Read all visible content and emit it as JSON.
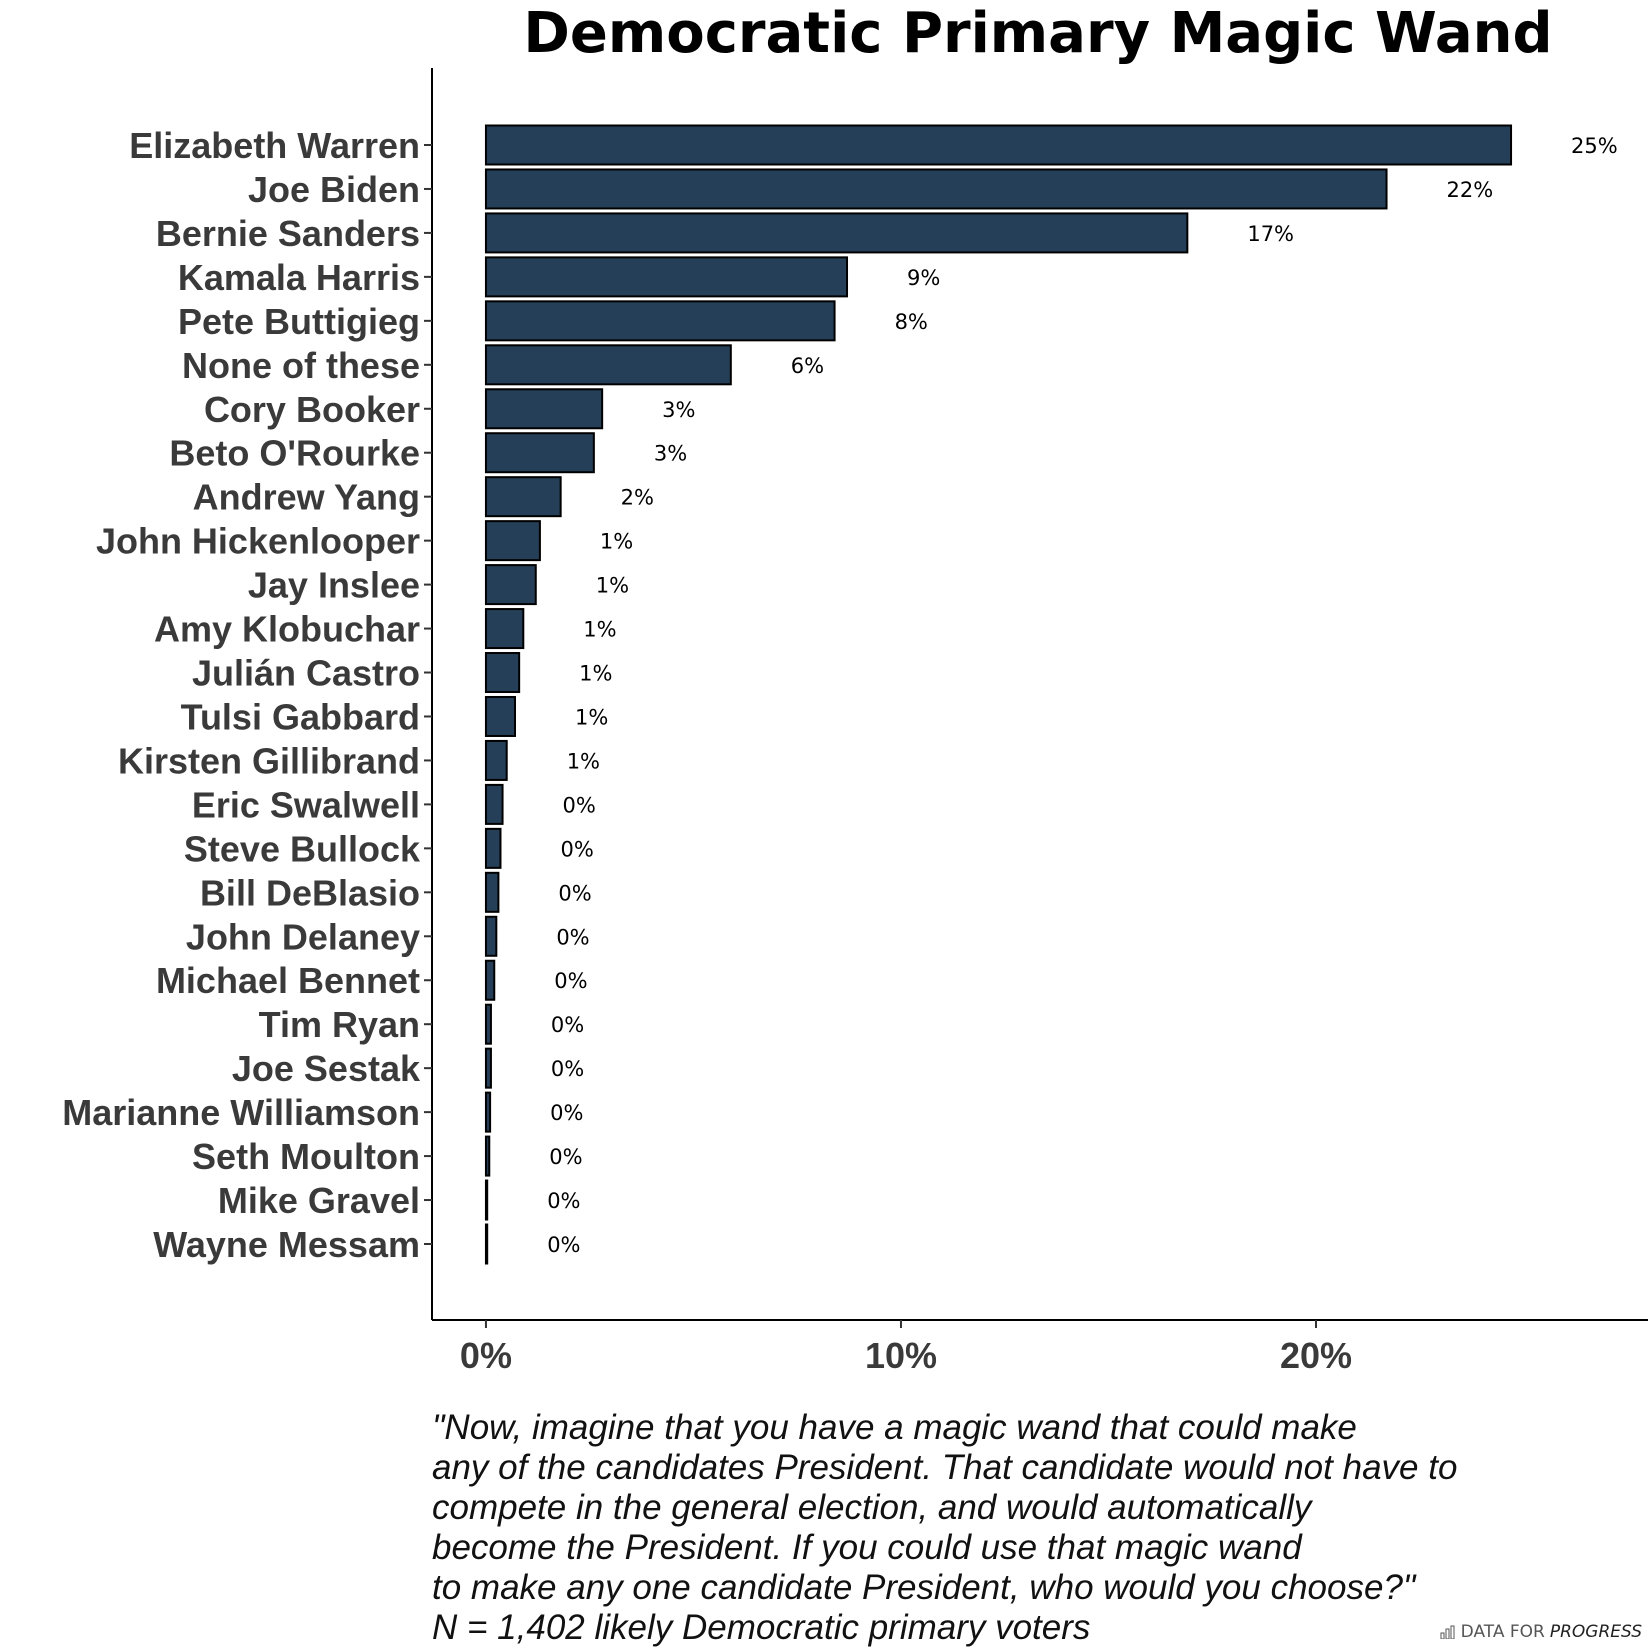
{
  "chart_data": {
    "type": "bar",
    "orientation": "horizontal",
    "title": "Democratic Primary Magic Wand",
    "xlabel": "",
    "ylabel": "",
    "xlim": [
      -1.3,
      28
    ],
    "x_ticks": [
      0,
      10,
      20
    ],
    "x_tick_labels": [
      "0%",
      "10%",
      "20%"
    ],
    "grid": false,
    "categories": [
      "Elizabeth Warren",
      "Joe Biden",
      "Bernie Sanders",
      "Kamala Harris",
      "Pete Buttigieg",
      "None of these",
      "Cory Booker",
      "Beto O'Rourke",
      "Andrew Yang",
      "John Hickenlooper",
      "Jay Inslee",
      "Amy Klobuchar",
      "Julián Castro",
      "Tulsi Gabbard",
      "Kirsten Gillibrand",
      "Eric Swalwell",
      "Steve Bullock",
      "Bill DeBlasio",
      "John Delaney",
      "Michael Bennet",
      "Tim Ryan",
      "Joe Sestak",
      "Marianne Williamson",
      "Seth Moulton",
      "Mike Gravel",
      "Wayne Messam"
    ],
    "values": [
      24.7,
      21.7,
      16.9,
      8.7,
      8.4,
      5.9,
      2.8,
      2.6,
      1.8,
      1.3,
      1.2,
      0.9,
      0.8,
      0.7,
      0.5,
      0.4,
      0.35,
      0.3,
      0.25,
      0.2,
      0.12,
      0.12,
      0.1,
      0.08,
      0.03,
      0.03
    ],
    "data_labels": [
      "25%",
      "22%",
      "17%",
      "9%",
      "8%",
      "6%",
      "3%",
      "3%",
      "2%",
      "1%",
      "1%",
      "1%",
      "1%",
      "1%",
      "1%",
      "0%",
      "0%",
      "0%",
      "0%",
      "0%",
      "0%",
      "0%",
      "0%",
      "0%",
      "0%",
      "0%"
    ],
    "bar_color": "#243f57"
  },
  "caption": {
    "lines": [
      "\"Now, imagine that you have a magic wand that could make",
      "any of the candidates President. That candidate would not have to",
      "compete in the general election, and would automatically",
      "become the President. If you could use that magic wand",
      "to make any one candidate President, who would you choose?\"",
      "N = 1,402 likely Democratic primary voters"
    ]
  },
  "brand": {
    "prefix": "DATA FOR",
    "name": "PROGRESS",
    "icon": "bar-chart-icon"
  }
}
